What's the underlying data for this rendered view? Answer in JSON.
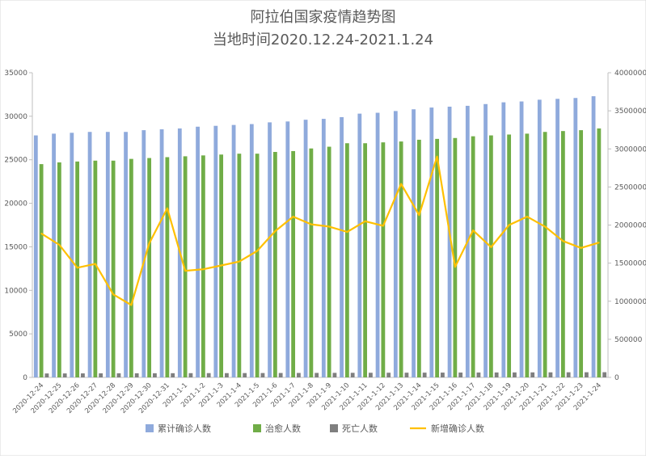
{
  "chart_data": {
    "type": "bar",
    "title": "阿拉伯国家疫情趋势图",
    "subtitle": "当地时间2020.12.24-2021.1.24",
    "categories": [
      "2020-12-24",
      "2020-12-25",
      "2020-12-26",
      "2020-12-27",
      "2020-12-28",
      "2020-12-29",
      "2020-12-30",
      "2020-12-31",
      "2021-1-1",
      "2021-1-2",
      "2021-1-3",
      "2021-1-4",
      "2021-1-5",
      "2021-1-6",
      "2021-1-7",
      "2021-1-8",
      "2021-1-9",
      "2021-1-10",
      "2021-1-11",
      "2021-1-12",
      "2021-1-13",
      "2021-1-14",
      "2021-1-15",
      "2021-1-16",
      "2021-1-17",
      "2021-1-18",
      "2021-1-19",
      "2021-1-20",
      "2021-1-21",
      "2021-1-22",
      "2021-1-23",
      "2021-1-24"
    ],
    "left_axis": {
      "min": 0,
      "max": 35000,
      "step": 5000,
      "ticks": [
        "0",
        "5000",
        "10000",
        "15000",
        "20000",
        "25000",
        "30000",
        "35000"
      ]
    },
    "right_axis": {
      "min": 0,
      "max": 4000000,
      "step": 500000,
      "ticks": [
        "0",
        "500000",
        "1000000",
        "1500000",
        "2000000",
        "2500000",
        "3000000",
        "3500000",
        "4000000"
      ]
    },
    "grid": false,
    "legend_position": "bottom",
    "series": [
      {
        "name": "累计确诊人数",
        "type": "bar",
        "axis": "left",
        "color": "#8faadc",
        "values": [
          27800,
          28000,
          28100,
          28200,
          28200,
          28200,
          28400,
          28500,
          28600,
          28800,
          28900,
          29000,
          29100,
          29300,
          29400,
          29600,
          29700,
          29900,
          30300,
          30400,
          30600,
          30800,
          31000,
          31100,
          31200,
          31400,
          31600,
          31700,
          31900,
          32000,
          32100,
          32300
        ]
      },
      {
        "name": "治愈人数",
        "type": "bar",
        "axis": "left",
        "color": "#70ad47",
        "values": [
          24500,
          24700,
          24800,
          24900,
          24900,
          25100,
          25200,
          25300,
          25400,
          25500,
          25600,
          25700,
          25700,
          25900,
          26000,
          26300,
          26500,
          26900,
          26900,
          27000,
          27100,
          27300,
          27400,
          27500,
          27700,
          27800,
          27900,
          28000,
          28200,
          28300,
          28400,
          28600
        ]
      },
      {
        "name": "死亡人数",
        "type": "bar",
        "axis": "left",
        "color": "#7f7f7f",
        "values": [
          450,
          455,
          460,
          465,
          470,
          470,
          475,
          480,
          485,
          490,
          490,
          495,
          500,
          505,
          510,
          515,
          520,
          525,
          530,
          535,
          540,
          545,
          550,
          555,
          560,
          565,
          570,
          575,
          580,
          585,
          590,
          595
        ]
      },
      {
        "name": "新增确诊人数",
        "type": "line",
        "axis": "right",
        "color": "#ffc000",
        "values": [
          1890000,
          1740000,
          1440000,
          1490000,
          1090000,
          950000,
          1760000,
          2220000,
          1400000,
          1420000,
          1470000,
          1520000,
          1660000,
          1920000,
          2110000,
          2010000,
          1980000,
          1910000,
          2050000,
          1990000,
          2540000,
          2130000,
          2900000,
          1450000,
          1930000,
          1710000,
          2000000,
          2110000,
          1980000,
          1790000,
          1700000,
          1770000
        ]
      }
    ]
  }
}
